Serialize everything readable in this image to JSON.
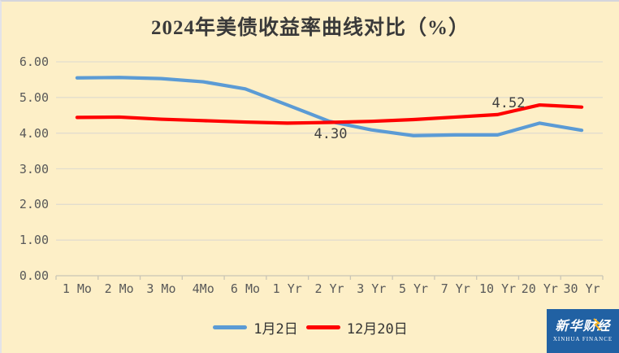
{
  "chart_data": {
    "type": "line",
    "title": "2024年美债收益率曲线对比（%）",
    "categories": [
      "1 Mo",
      "2 Mo",
      "3 Mo",
      "4Mo",
      "6 Mo",
      "1 Yr",
      "2 Yr",
      "3 Yr",
      "5 Yr",
      "7 Yr",
      "10 Yr",
      "20 Yr",
      "30 Yr"
    ],
    "series": [
      {
        "name": "1月2日",
        "color": "#5B9BD5",
        "values": [
          5.55,
          5.56,
          5.53,
          5.44,
          5.24,
          4.79,
          4.33,
          4.09,
          3.93,
          3.95,
          3.95,
          4.28,
          4.08
        ]
      },
      {
        "name": "12月20日",
        "color": "#FF0000",
        "values": [
          4.44,
          4.45,
          4.39,
          4.35,
          4.31,
          4.28,
          4.3,
          4.33,
          4.38,
          4.45,
          4.52,
          4.79,
          4.73
        ]
      }
    ],
    "y_ticks": [
      "6.00",
      "5.00",
      "4.00",
      "3.00",
      "2.00",
      "1.00",
      "0.00"
    ],
    "ylim": [
      0,
      6
    ],
    "grid": true,
    "legend_position": "bottom",
    "annotations": [
      {
        "text": "4.30",
        "series": "12月20日",
        "category": "2 Yr"
      },
      {
        "text": "4.52",
        "series": "12月20日",
        "category": "10 Yr"
      }
    ],
    "colors": {
      "background": "#FDEFC7",
      "gridline": "#E2DDCE",
      "axis": "#C9C5B5",
      "title_text": "#3A3A3A",
      "tick_text": "#595959",
      "annotation_text": "#404040"
    }
  },
  "logo": {
    "name_cn": "新华财经",
    "name_en": "XINHUA FINANCE",
    "background": "#2161A3",
    "accent": "#FFB520"
  }
}
